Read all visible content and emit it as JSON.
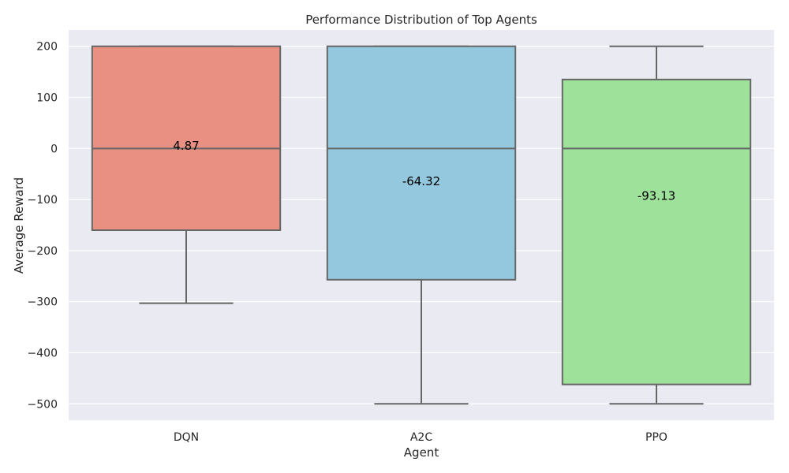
{
  "chart_data": {
    "type": "box",
    "title": "Performance Distribution of Top Agents",
    "xlabel": "Agent",
    "ylabel": "Average Reward",
    "ylim": [
      -532,
      232
    ],
    "yticks": [
      200,
      100,
      0,
      -100,
      -200,
      -300,
      -400,
      -500
    ],
    "ytick_labels": [
      "200",
      "100",
      "0",
      "−100",
      "−200",
      "−300",
      "−400",
      "−500"
    ],
    "grid": true,
    "categories": [
      "DQN",
      "A2C",
      "PPO"
    ],
    "boxes": [
      {
        "name": "DQN",
        "whisker_low": -303,
        "q1": -160,
        "median": 0,
        "q3": 200,
        "whisker_high": 200,
        "mean_label": "4.87",
        "mean_value": 4.87,
        "color": "#e99083"
      },
      {
        "name": "A2C",
        "whisker_low": -500,
        "q1": -257,
        "median": 0,
        "q3": 200,
        "whisker_high": 200,
        "mean_label": "-64.32",
        "mean_value": -64.32,
        "color": "#93c8de"
      },
      {
        "name": "PPO",
        "whisker_low": -500,
        "q1": -462,
        "median": 0,
        "q3": 135,
        "whisker_high": 200,
        "mean_label": "-93.13",
        "mean_value": -93.13,
        "color": "#9de19a"
      }
    ],
    "colors": {
      "plot_background": "#eaeaf2",
      "grid": "#ffffff",
      "box_edge": "#666666"
    }
  }
}
